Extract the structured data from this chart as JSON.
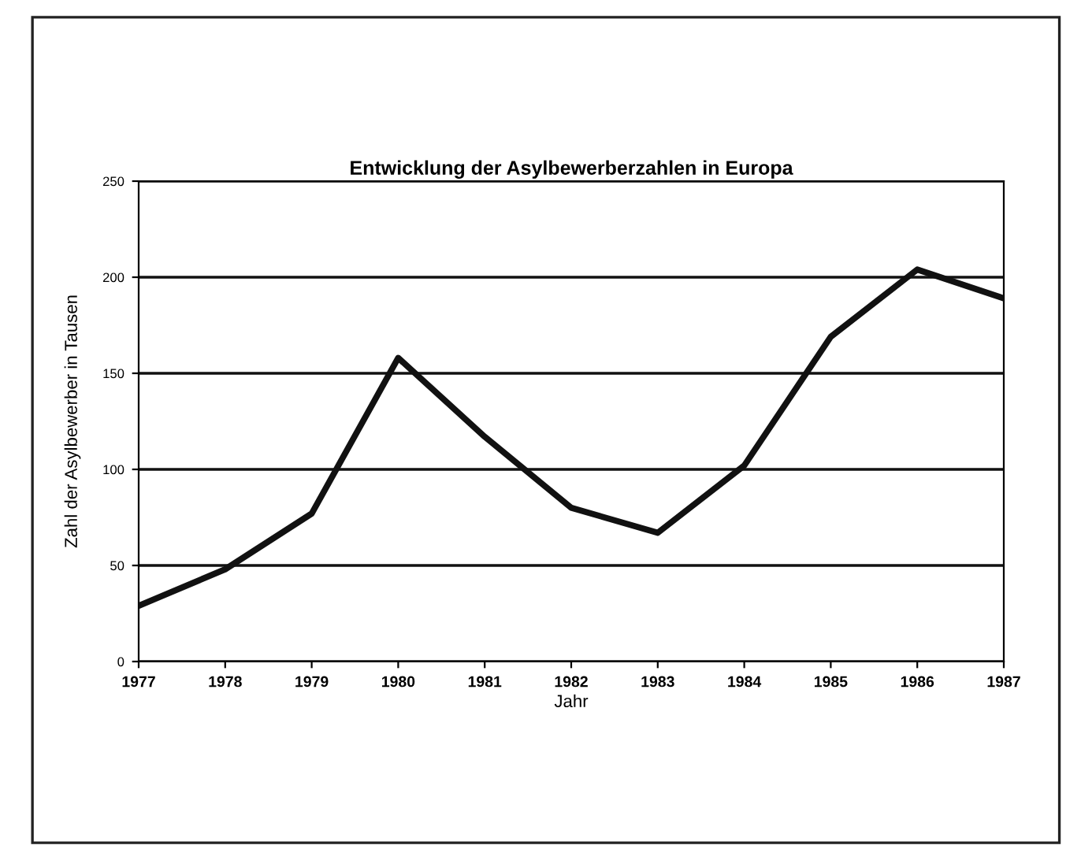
{
  "chart_data": {
    "type": "line",
    "title": "Entwicklung der Asylbewerberzahlen in Europa",
    "xlabel": "Jahr",
    "ylabel": "Zahl der Asylbewerber in Tausen",
    "x": [
      1977,
      1978,
      1979,
      1980,
      1981,
      1982,
      1983,
      1984,
      1985,
      1986,
      1987
    ],
    "series": [
      {
        "color": "#111111",
        "values": [
          29,
          48,
          77,
          158,
          117,
          80,
          67,
          102,
          169,
          204,
          189
        ]
      }
    ],
    "xlim": [
      1977,
      1987
    ],
    "xticks": [
      1977,
      1978,
      1979,
      1980,
      1981,
      1982,
      1983,
      1984,
      1985,
      1986,
      1987
    ],
    "ylim": [
      0,
      250
    ],
    "yticks": [
      0,
      50,
      100,
      150,
      200,
      250
    ],
    "grid": "y",
    "legend": false,
    "marker": "none",
    "line_style": "solid"
  }
}
